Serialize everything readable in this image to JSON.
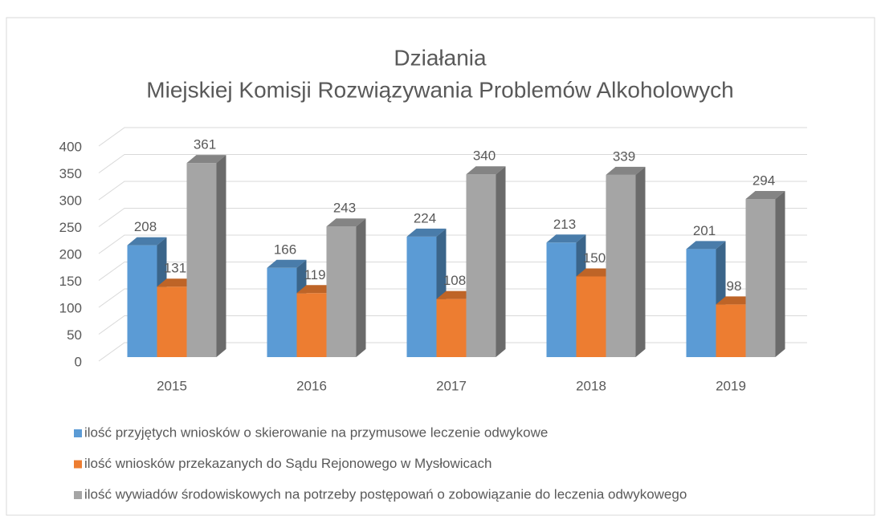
{
  "chart_data": {
    "type": "bar3d",
    "title": [
      "Działania",
      "Miejskiej Komisji Rozwiązywania Problemów Alkoholowych"
    ],
    "categories": [
      "2015",
      "2016",
      "2017",
      "2018",
      "2019"
    ],
    "series": [
      {
        "name": "ilość przyjętych wniosków o skierowanie na przymusowe leczenie odwykowe",
        "color": "#5b9bd5",
        "values": [
          208,
          166,
          224,
          213,
          201
        ]
      },
      {
        "name": "ilość wniosków przekazanych do Sądu Rejonowego w Mysłowicach",
        "color": "#ed7d31",
        "values": [
          131,
          119,
          108,
          150,
          98
        ]
      },
      {
        "name": "ilość wywiadów środowiskowych na potrzeby postępowań o zobowiązanie do leczenia odwykowego",
        "color": "#a5a5a5",
        "values": [
          361,
          243,
          340,
          339,
          294
        ]
      }
    ],
    "ylim": [
      0,
      400
    ],
    "yticks": [
      0,
      50,
      100,
      150,
      200,
      250,
      300,
      350,
      400
    ],
    "grid": true,
    "legend": "bottom"
  }
}
